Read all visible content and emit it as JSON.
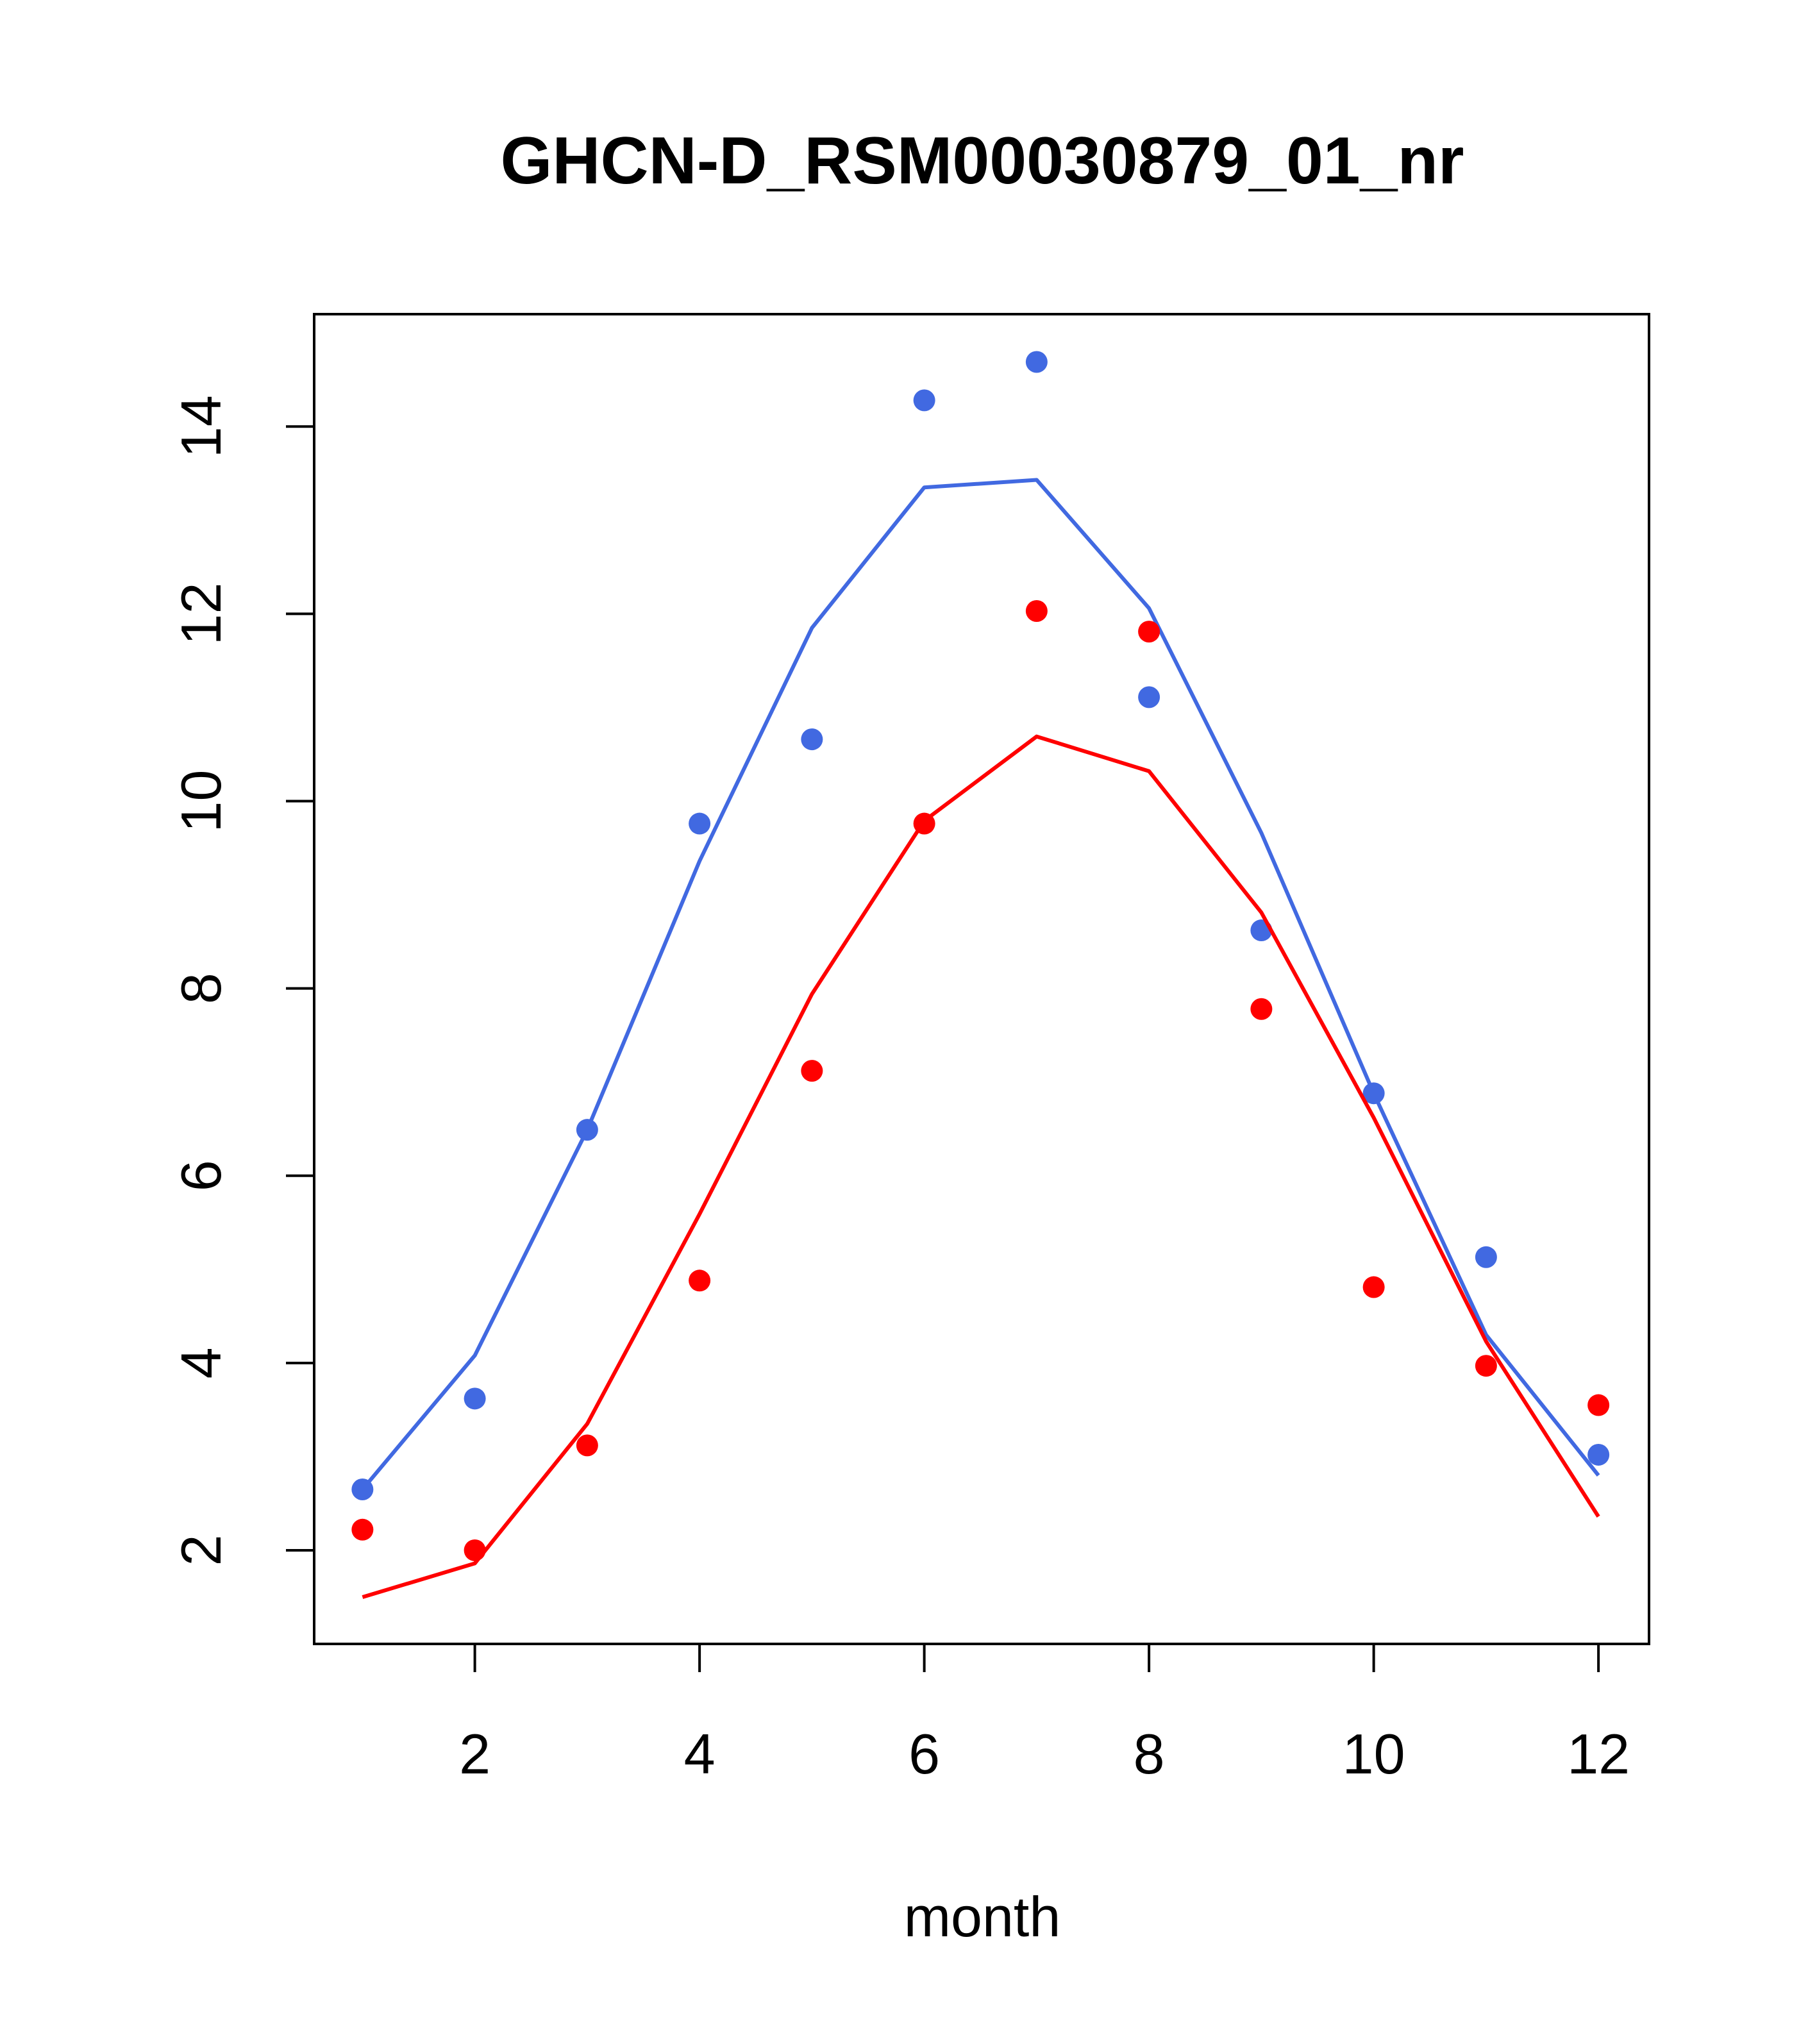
{
  "chart_data": {
    "type": "scatter",
    "title": "GHCN-D_RSM00030879_01_nr",
    "xlabel": "month",
    "ylabel": "",
    "xlim": [
      0.57,
      12.45
    ],
    "ylim": [
      1.0,
      15.2
    ],
    "xticks": [
      2,
      4,
      6,
      8,
      10,
      12
    ],
    "yticks": [
      2,
      4,
      6,
      8,
      10,
      12,
      14
    ],
    "grid": false,
    "series": [
      {
        "color": "#4169E1",
        "points": {
          "x": [
            1,
            2,
            3,
            4,
            5,
            6,
            7,
            8,
            9,
            10,
            11,
            12
          ],
          "y": [
            2.65,
            3.62,
            6.49,
            9.76,
            10.66,
            14.28,
            14.69,
            11.11,
            8.62,
            6.88,
            5.13,
            3.02
          ]
        },
        "line": {
          "x": [
            1,
            2,
            3,
            4,
            5,
            6,
            7,
            8,
            9,
            10,
            11,
            12
          ],
          "y": [
            2.65,
            4.08,
            6.49,
            9.36,
            11.85,
            13.35,
            13.43,
            12.06,
            9.66,
            6.88,
            4.3,
            2.8
          ]
        }
      },
      {
        "color": "#FF0000",
        "points": {
          "x": [
            1,
            2,
            3,
            4,
            5,
            6,
            7,
            8,
            9,
            10,
            11,
            12
          ],
          "y": [
            2.22,
            2.0,
            3.12,
            4.88,
            7.12,
            9.76,
            12.03,
            11.81,
            7.78,
            4.81,
            3.97,
            3.55
          ]
        },
        "line": {
          "x": [
            1,
            2,
            3,
            4,
            5,
            6,
            7,
            8,
            9,
            10,
            11,
            12
          ],
          "y": [
            1.5,
            1.86,
            3.35,
            5.59,
            7.94,
            9.79,
            10.69,
            10.32,
            8.81,
            6.62,
            4.23,
            2.36
          ]
        }
      }
    ]
  }
}
